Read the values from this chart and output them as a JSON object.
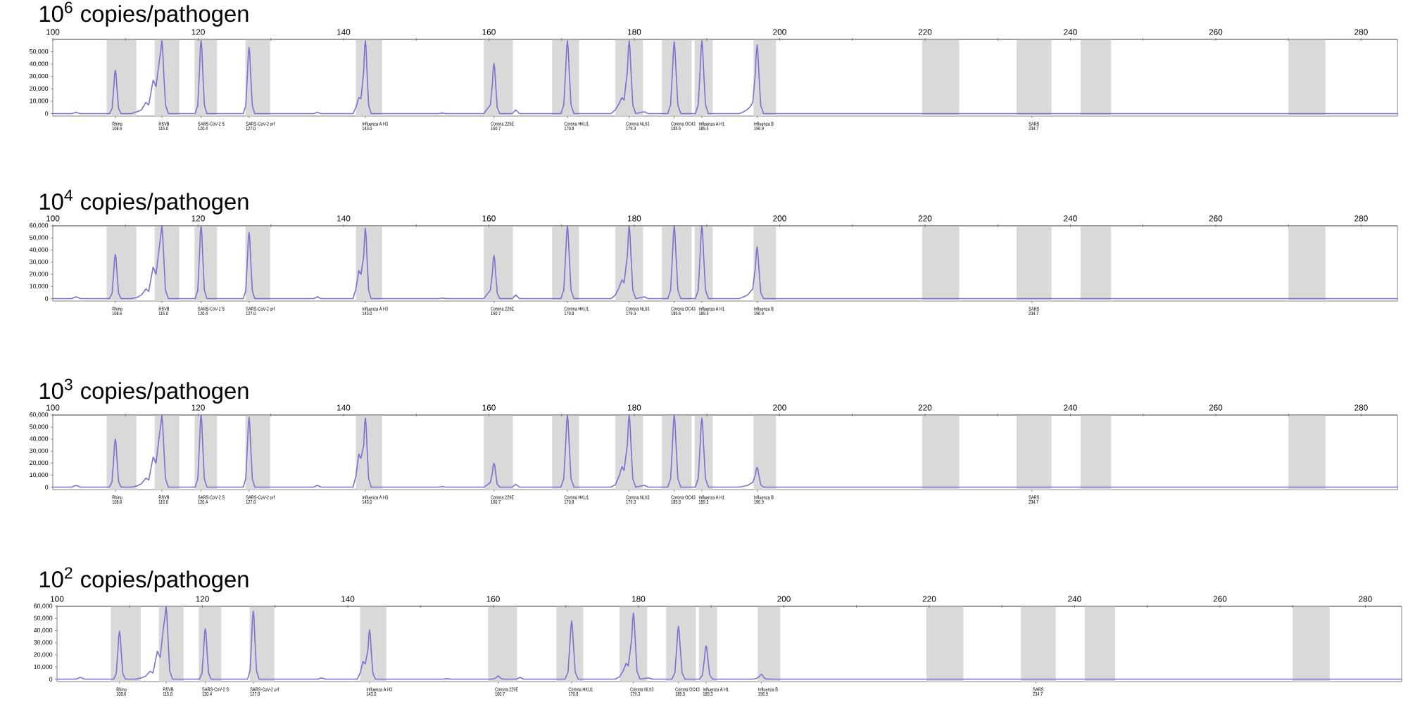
{
  "chart_data": [
    {
      "type": "line",
      "title": "10$^{6}$ copies/pathogen",
      "xlim": [
        100,
        285
      ],
      "x2lim": [
        100,
        285
      ],
      "ylim": [
        -2000,
        60000
      ],
      "xticks": [
        {
          "value": 108.6,
          "label": "108.6"
        },
        {
          "value": 115.0,
          "label": "115.0"
        },
        {
          "value": 120.4,
          "label": "120.4"
        },
        {
          "value": 127.0,
          "label": "127.0"
        },
        {
          "value": 143.0,
          "label": "143.0"
        },
        {
          "value": 160.7,
          "label": "160.7"
        },
        {
          "value": 170.8,
          "label": "170.8"
        },
        {
          "value": 179.3,
          "label": "179.3"
        },
        {
          "value": 185.5,
          "label": "185.5"
        },
        {
          "value": 189.3,
          "label": "189.3"
        },
        {
          "value": 196.9,
          "label": "196.9"
        },
        {
          "value": 234.7,
          "label": "234.7"
        }
      ],
      "x2ticks": [
        100,
        {
          "value": 110,
          "label": null
        },
        120,
        {
          "value": 130,
          "label": null
        },
        140,
        {
          "value": 150,
          "label": null
        },
        160,
        {
          "value": 170,
          "label": null
        },
        180,
        {
          "value": 190,
          "label": null
        },
        200,
        {
          "value": 210,
          "label": null
        },
        220,
        {
          "value": 230,
          "label": null
        },
        240,
        {
          "value": 250,
          "label": null
        },
        260,
        {
          "value": 270,
          "label": null
        },
        280
      ],
      "yticks": [
        0,
        {
          "value": 10000,
          "label": "10,000"
        },
        {
          "value": 20000,
          "label": "20,000"
        },
        {
          "value": 30000,
          "label": "30,000"
        },
        {
          "value": 40000,
          "label": "40,000"
        },
        {
          "value": 50000,
          "label": "50,000"
        }
      ],
      "bands": [
        {
          "axis": "x",
          "from": 107.4,
          "to": 111.5,
          "color": "#d9d9d9"
        },
        {
          "axis": "x",
          "from": 114.0,
          "to": 117.4,
          "color": "#d9d9d9"
        },
        {
          "axis": "x",
          "from": 119.5,
          "to": 122.6,
          "color": "#d9d9d9"
        },
        {
          "axis": "x",
          "from": 126.5,
          "to": 129.9,
          "color": "#d9d9d9"
        },
        {
          "axis": "x",
          "from": 141.7,
          "to": 145.3,
          "color": "#d9d9d9"
        },
        {
          "axis": "x",
          "from": 159.3,
          "to": 163.3,
          "color": "#d9d9d9"
        },
        {
          "axis": "x",
          "from": 168.7,
          "to": 172.4,
          "color": "#d9d9d9"
        },
        {
          "axis": "x",
          "from": 177.4,
          "to": 181.2,
          "color": "#d9d9d9"
        },
        {
          "axis": "x",
          "from": 183.8,
          "to": 187.9,
          "color": "#d9d9d9"
        },
        {
          "axis": "x",
          "from": 188.3,
          "to": 190.8,
          "color": "#d9d9d9"
        },
        {
          "axis": "x",
          "from": 196.4,
          "to": 199.5,
          "color": "#d9d9d9"
        },
        {
          "axis": "x",
          "from": 219.6,
          "to": 224.7,
          "color": "#d9d9d9"
        },
        {
          "axis": "x",
          "from": 232.6,
          "to": 237.4,
          "color": "#d9d9d9"
        },
        {
          "axis": "x",
          "from": 241.4,
          "to": 245.6,
          "color": "#d9d9d9"
        },
        {
          "axis": "x",
          "from": 270.0,
          "to": 275.1,
          "color": "#d9d9d9"
        }
      ],
      "annotations": [
        "Rhino",
        "RSVB",
        "SARS-CoV-2 S",
        "SARS-CoV-2 orf",
        "Influenza A H3",
        "Corona 229E",
        "Corona HKU1",
        "Corona NL63",
        "Corona OC43",
        "Influenza A H1",
        "Influenza B",
        "SARS"
      ],
      "x": [
        100,
        102.6,
        103.2,
        103.8,
        107.8,
        108.15,
        108.38,
        108.5,
        108.6,
        108.7,
        108.82,
        109.05,
        109.4,
        110.8,
        111.6,
        112.2,
        112.8,
        113.2,
        113.8,
        114.2,
        114.6,
        114.9,
        115.0,
        115.1,
        115.25,
        115.5,
        115.9,
        119.6,
        119.95,
        120.18,
        120.3,
        120.4,
        120.5,
        120.62,
        120.85,
        121.2,
        126.2,
        126.55,
        126.78,
        126.9,
        127.0,
        127.1,
        127.22,
        127.45,
        127.8,
        135.9,
        136.4,
        136.9,
        141.3,
        141.7,
        142.1,
        142.4,
        142.78,
        142.9,
        143.0,
        143.1,
        143.22,
        143.45,
        143.8,
        153.1,
        153.6,
        154.1,
        159.3,
        159.8,
        160.2,
        160.48,
        160.6,
        160.7,
        160.8,
        160.92,
        161.15,
        161.5,
        163.2,
        163.7,
        164.2,
        169.9,
        170.3,
        170.56,
        170.7,
        170.8,
        170.9,
        171.04,
        171.3,
        171.7,
        176.8,
        177.4,
        177.9,
        178.3,
        178.6,
        179.06,
        179.2,
        179.3,
        179.4,
        179.54,
        179.8,
        180.2,
        181.4,
        181.9,
        184.6,
        185.0,
        185.26,
        185.4,
        185.5,
        185.6,
        185.74,
        186.0,
        186.4,
        188.4,
        188.8,
        189.06,
        189.2,
        189.3,
        189.4,
        189.54,
        189.8,
        190.2,
        194.4,
        194.9,
        195.6,
        196.0,
        196.3,
        196.66,
        196.8,
        196.9,
        197.0,
        197.14,
        197.4,
        197.8,
        285
      ],
      "series": [
        {
          "color": "#7b70d0",
          "values": [
            0,
            0,
            1000,
            0,
            0,
            4200,
            21000,
            31500,
            35000,
            31500,
            21000,
            4200,
            0,
            0,
            1500,
            3000,
            9000,
            7000,
            27000,
            22000,
            40000,
            53000,
            59000,
            53000,
            35000,
            7000,
            0,
            0,
            7000,
            35000,
            53000,
            59000,
            53000,
            35000,
            7000,
            0,
            0,
            6400,
            32000,
            48000,
            53500,
            48000,
            32000,
            6400,
            0,
            0,
            1000,
            0,
            0,
            5000,
            13000,
            12000,
            35000,
            53000,
            59000,
            53000,
            35000,
            7000,
            0,
            0,
            500,
            0,
            0,
            4000,
            7000,
            24000,
            36500,
            40500,
            36500,
            24000,
            5000,
            0,
            0,
            3000,
            0,
            0,
            7000,
            35000,
            53000,
            59000,
            53000,
            35000,
            7000,
            0,
            0,
            3000,
            8000,
            13000,
            11000,
            35000,
            53000,
            59000,
            53000,
            35000,
            7000,
            0,
            1500,
            0,
            0,
            7000,
            35000,
            52000,
            58000,
            52000,
            35000,
            7000,
            0,
            0,
            7000,
            35000,
            53000,
            59000,
            53000,
            35000,
            7000,
            0,
            0,
            1000,
            3500,
            6000,
            9000,
            33000,
            50000,
            55500,
            50000,
            33000,
            6500,
            0,
            0
          ]
        }
      ]
    },
    {
      "type": "line",
      "title": "10$^{4}$ copies/pathogen",
      "xlim": [
        100,
        285
      ],
      "x2lim": [
        100,
        285
      ],
      "ylim": [
        -2000,
        60000
      ],
      "xticks": [
        {
          "value": 108.6,
          "label": "108.6"
        },
        {
          "value": 115.0,
          "label": "115.0"
        },
        {
          "value": 120.4,
          "label": "120.4"
        },
        {
          "value": 127.0,
          "label": "127.0"
        },
        {
          "value": 143.0,
          "label": "143.0"
        },
        {
          "value": 160.7,
          "label": "160.7"
        },
        {
          "value": 170.8,
          "label": "170.8"
        },
        {
          "value": 179.3,
          "label": "179.3"
        },
        {
          "value": 185.5,
          "label": "185.5"
        },
        {
          "value": 189.3,
          "label": "189.3"
        },
        {
          "value": 196.9,
          "label": "196.9"
        },
        {
          "value": 234.7,
          "label": "234.7"
        }
      ],
      "x2ticks": [
        100,
        {
          "value": 110,
          "label": null
        },
        120,
        {
          "value": 130,
          "label": null
        },
        140,
        {
          "value": 150,
          "label": null
        },
        160,
        {
          "value": 170,
          "label": null
        },
        180,
        {
          "value": 190,
          "label": null
        },
        200,
        {
          "value": 210,
          "label": null
        },
        220,
        {
          "value": 230,
          "label": null
        },
        240,
        {
          "value": 250,
          "label": null
        },
        260,
        {
          "value": 270,
          "label": null
        },
        280
      ],
      "yticks": [
        0,
        {
          "value": 10000,
          "label": "10,000"
        },
        {
          "value": 20000,
          "label": "20,000"
        },
        {
          "value": 30000,
          "label": "30,000"
        },
        {
          "value": 40000,
          "label": "40,000"
        },
        {
          "value": 50000,
          "label": "50,000"
        },
        {
          "value": 60000,
          "label": "60,000"
        }
      ],
      "bands": [
        {
          "axis": "x",
          "from": 107.4,
          "to": 111.5,
          "color": "#d9d9d9"
        },
        {
          "axis": "x",
          "from": 114.0,
          "to": 117.4,
          "color": "#d9d9d9"
        },
        {
          "axis": "x",
          "from": 119.5,
          "to": 122.6,
          "color": "#d9d9d9"
        },
        {
          "axis": "x",
          "from": 126.5,
          "to": 129.9,
          "color": "#d9d9d9"
        },
        {
          "axis": "x",
          "from": 141.7,
          "to": 145.3,
          "color": "#d9d9d9"
        },
        {
          "axis": "x",
          "from": 159.3,
          "to": 163.3,
          "color": "#d9d9d9"
        },
        {
          "axis": "x",
          "from": 168.7,
          "to": 172.4,
          "color": "#d9d9d9"
        },
        {
          "axis": "x",
          "from": 177.4,
          "to": 181.2,
          "color": "#d9d9d9"
        },
        {
          "axis": "x",
          "from": 183.8,
          "to": 187.9,
          "color": "#d9d9d9"
        },
        {
          "axis": "x",
          "from": 188.3,
          "to": 190.8,
          "color": "#d9d9d9"
        },
        {
          "axis": "x",
          "from": 196.4,
          "to": 199.5,
          "color": "#d9d9d9"
        },
        {
          "axis": "x",
          "from": 219.6,
          "to": 224.7,
          "color": "#d9d9d9"
        },
        {
          "axis": "x",
          "from": 232.6,
          "to": 237.4,
          "color": "#d9d9d9"
        },
        {
          "axis": "x",
          "from": 241.4,
          "to": 245.6,
          "color": "#d9d9d9"
        },
        {
          "axis": "x",
          "from": 270.0,
          "to": 275.1,
          "color": "#d9d9d9"
        }
      ],
      "annotations": [
        "Rhino",
        "RSVB",
        "SARS-CoV-2 S",
        "SARS-CoV-2 orf",
        "Influenza A H3",
        "Corona 229E",
        "Corona HKU1",
        "Corona NL63",
        "Corona OC43",
        "Influenza A H1",
        "Influenza B",
        "SARS"
      ],
      "x": [
        100,
        102.6,
        103.2,
        103.8,
        107.8,
        108.15,
        108.38,
        108.5,
        108.6,
        108.7,
        108.82,
        109.05,
        109.4,
        110.8,
        111.6,
        112.2,
        112.8,
        113.2,
        113.8,
        114.2,
        114.6,
        114.9,
        115.0,
        115.1,
        115.25,
        115.5,
        115.9,
        119.6,
        119.95,
        120.18,
        120.3,
        120.4,
        120.5,
        120.62,
        120.85,
        121.2,
        126.2,
        126.55,
        126.78,
        126.9,
        127.0,
        127.1,
        127.22,
        127.45,
        127.8,
        135.9,
        136.4,
        136.9,
        141.3,
        141.7,
        142.1,
        142.4,
        142.78,
        142.9,
        143.0,
        143.1,
        143.22,
        143.45,
        143.8,
        153.1,
        153.6,
        154.1,
        159.3,
        159.8,
        160.2,
        160.48,
        160.6,
        160.7,
        160.8,
        160.92,
        161.15,
        161.5,
        163.2,
        163.7,
        164.2,
        169.9,
        170.3,
        170.56,
        170.7,
        170.8,
        170.9,
        171.04,
        171.3,
        171.7,
        176.8,
        177.4,
        177.9,
        178.3,
        178.6,
        179.06,
        179.2,
        179.3,
        179.4,
        179.54,
        179.8,
        180.2,
        181.4,
        181.9,
        184.6,
        185.0,
        185.26,
        185.4,
        185.5,
        185.6,
        185.74,
        186.0,
        186.4,
        188.4,
        188.8,
        189.06,
        189.2,
        189.3,
        189.4,
        189.54,
        189.8,
        190.2,
        194.4,
        194.9,
        195.6,
        196.0,
        196.3,
        196.66,
        196.8,
        196.9,
        197.0,
        197.14,
        197.4,
        197.8,
        285
      ],
      "series": [
        {
          "color": "#7b70d0",
          "values": [
            0,
            0,
            1500,
            0,
            0,
            4400,
            22000,
            33000,
            36500,
            33000,
            22000,
            4400,
            0,
            0,
            1000,
            3000,
            8000,
            6000,
            26000,
            20000,
            40000,
            54000,
            60000,
            54000,
            36000,
            7000,
            0,
            0,
            7000,
            36000,
            54000,
            60000,
            54000,
            36000,
            7000,
            0,
            0,
            6500,
            33000,
            49000,
            54500,
            49000,
            33000,
            6500,
            0,
            0,
            1500,
            0,
            0,
            8000,
            23000,
            20000,
            35000,
            52000,
            58000,
            52000,
            35000,
            7000,
            0,
            0,
            500,
            0,
            0,
            4000,
            7000,
            21000,
            32000,
            35500,
            32000,
            21000,
            4500,
            0,
            0,
            3000,
            0,
            0,
            7000,
            36000,
            54000,
            60000,
            54000,
            36000,
            7000,
            0,
            0,
            3000,
            9000,
            15500,
            13000,
            36000,
            54000,
            60000,
            54000,
            36000,
            7000,
            0,
            1500,
            0,
            0,
            7000,
            36000,
            54000,
            60000,
            54000,
            36000,
            7000,
            0,
            0,
            7000,
            36000,
            54000,
            60000,
            54000,
            36000,
            7000,
            0,
            0,
            1000,
            3000,
            6000,
            8000,
            25500,
            38000,
            42500,
            38000,
            25500,
            5000,
            0,
            0
          ]
        }
      ]
    },
    {
      "type": "line",
      "title": "10$^{3}$ copies/pathogen",
      "xlim": [
        100,
        285
      ],
      "x2lim": [
        100,
        285
      ],
      "ylim": [
        -2000,
        60000
      ],
      "xticks": [
        {
          "value": 108.6,
          "label": "108.6"
        },
        {
          "value": 115.0,
          "label": "115.0"
        },
        {
          "value": 120.4,
          "label": "120.4"
        },
        {
          "value": 127.0,
          "label": "127.0"
        },
        {
          "value": 143.0,
          "label": "143.0"
        },
        {
          "value": 160.7,
          "label": "160.7"
        },
        {
          "value": 170.8,
          "label": "170.8"
        },
        {
          "value": 179.3,
          "label": "179.3"
        },
        {
          "value": 185.5,
          "label": "185.5"
        },
        {
          "value": 189.3,
          "label": "189.3"
        },
        {
          "value": 196.9,
          "label": "196.9"
        },
        {
          "value": 234.7,
          "label": "234.7"
        }
      ],
      "x2ticks": [
        100,
        {
          "value": 110,
          "label": null
        },
        120,
        {
          "value": 130,
          "label": null
        },
        140,
        {
          "value": 150,
          "label": null
        },
        160,
        {
          "value": 170,
          "label": null
        },
        180,
        {
          "value": 190,
          "label": null
        },
        200,
        {
          "value": 210,
          "label": null
        },
        220,
        {
          "value": 230,
          "label": null
        },
        240,
        {
          "value": 250,
          "label": null
        },
        260,
        {
          "value": 270,
          "label": null
        },
        280
      ],
      "yticks": [
        0,
        {
          "value": 10000,
          "label": "10,000"
        },
        {
          "value": 20000,
          "label": "20,000"
        },
        {
          "value": 30000,
          "label": "30,000"
        },
        {
          "value": 40000,
          "label": "40,000"
        },
        {
          "value": 50000,
          "label": "50,000"
        },
        {
          "value": 60000,
          "label": "60,000"
        }
      ],
      "bands": [
        {
          "axis": "x",
          "from": 107.4,
          "to": 111.5,
          "color": "#d9d9d9"
        },
        {
          "axis": "x",
          "from": 114.0,
          "to": 117.4,
          "color": "#d9d9d9"
        },
        {
          "axis": "x",
          "from": 119.5,
          "to": 122.6,
          "color": "#d9d9d9"
        },
        {
          "axis": "x",
          "from": 126.5,
          "to": 129.9,
          "color": "#d9d9d9"
        },
        {
          "axis": "x",
          "from": 141.7,
          "to": 145.3,
          "color": "#d9d9d9"
        },
        {
          "axis": "x",
          "from": 159.3,
          "to": 163.3,
          "color": "#d9d9d9"
        },
        {
          "axis": "x",
          "from": 168.7,
          "to": 172.4,
          "color": "#d9d9d9"
        },
        {
          "axis": "x",
          "from": 177.4,
          "to": 181.2,
          "color": "#d9d9d9"
        },
        {
          "axis": "x",
          "from": 183.8,
          "to": 187.9,
          "color": "#d9d9d9"
        },
        {
          "axis": "x",
          "from": 188.3,
          "to": 190.8,
          "color": "#d9d9d9"
        },
        {
          "axis": "x",
          "from": 196.4,
          "to": 199.5,
          "color": "#d9d9d9"
        },
        {
          "axis": "x",
          "from": 219.6,
          "to": 224.7,
          "color": "#d9d9d9"
        },
        {
          "axis": "x",
          "from": 232.6,
          "to": 237.4,
          "color": "#d9d9d9"
        },
        {
          "axis": "x",
          "from": 241.4,
          "to": 245.6,
          "color": "#d9d9d9"
        },
        {
          "axis": "x",
          "from": 270.0,
          "to": 275.1,
          "color": "#d9d9d9"
        }
      ],
      "annotations": [
        "Rhino",
        "RSVB",
        "SARS-CoV-2 S",
        "SARS-CoV-2 orf",
        "Influenza A H3",
        "Corona 229E",
        "Corona HKU1",
        "Corona NL63",
        "Corona OC43",
        "Influenza A H1",
        "Influenza B",
        "SARS"
      ],
      "x": [
        100,
        102.6,
        103.2,
        103.8,
        107.8,
        108.15,
        108.38,
        108.5,
        108.6,
        108.7,
        108.82,
        109.05,
        109.4,
        110.8,
        111.6,
        112.2,
        112.8,
        113.2,
        113.8,
        114.2,
        114.6,
        114.9,
        115.0,
        115.1,
        115.25,
        115.5,
        115.9,
        119.6,
        119.95,
        120.18,
        120.3,
        120.4,
        120.5,
        120.62,
        120.85,
        121.2,
        126.2,
        126.55,
        126.78,
        126.9,
        127.0,
        127.1,
        127.22,
        127.45,
        127.8,
        135.9,
        136.4,
        136.9,
        141.3,
        141.7,
        142.1,
        142.4,
        142.78,
        142.9,
        143.0,
        143.1,
        143.22,
        143.45,
        143.8,
        153.1,
        153.6,
        154.1,
        159.3,
        159.8,
        160.2,
        160.48,
        160.6,
        160.7,
        160.8,
        160.92,
        161.15,
        161.5,
        163.2,
        163.7,
        164.2,
        169.9,
        170.3,
        170.56,
        170.7,
        170.8,
        170.9,
        171.04,
        171.3,
        171.7,
        176.8,
        177.4,
        177.9,
        178.3,
        178.6,
        179.06,
        179.2,
        179.3,
        179.4,
        179.54,
        179.8,
        180.2,
        181.4,
        181.9,
        184.6,
        185.0,
        185.26,
        185.4,
        185.5,
        185.6,
        185.74,
        186.0,
        186.4,
        188.4,
        188.8,
        189.06,
        189.2,
        189.3,
        189.4,
        189.54,
        189.8,
        190.2,
        194.4,
        194.9,
        195.6,
        196.0,
        196.3,
        196.66,
        196.8,
        196.9,
        197.0,
        197.14,
        197.4,
        197.8,
        285
      ],
      "series": [
        {
          "color": "#7b70d0",
          "values": [
            0,
            0,
            1500,
            0,
            0,
            4800,
            24000,
            36000,
            40000,
            36000,
            24000,
            4800,
            0,
            0,
            1000,
            3000,
            7500,
            6000,
            25000,
            20000,
            40000,
            54000,
            60000,
            54000,
            36000,
            7000,
            0,
            0,
            7000,
            36000,
            54000,
            60000,
            54000,
            36000,
            7000,
            0,
            0,
            7000,
            35000,
            52000,
            58000,
            52000,
            35000,
            7000,
            0,
            0,
            1500,
            0,
            0,
            9000,
            27500,
            24000,
            35000,
            52000,
            57500,
            52000,
            34500,
            7000,
            0,
            0,
            500,
            0,
            0,
            2000,
            4000,
            12000,
            18000,
            20000,
            18000,
            12000,
            2400,
            0,
            0,
            2500,
            0,
            0,
            7000,
            36000,
            54000,
            60000,
            54000,
            36000,
            7000,
            0,
            0,
            2000,
            9000,
            17000,
            14000,
            36000,
            54000,
            60000,
            54000,
            36000,
            7000,
            0,
            1500,
            0,
            0,
            7000,
            36000,
            54000,
            60000,
            54000,
            36000,
            7000,
            0,
            0,
            7000,
            34500,
            52000,
            57500,
            52000,
            34500,
            7000,
            0,
            0,
            500,
            1500,
            3000,
            4000,
            10000,
            15000,
            16500,
            15000,
            10000,
            2000,
            0,
            0
          ]
        }
      ]
    },
    {
      "type": "line",
      "title": "10$^{2}$ copies/pathogen",
      "xlim": [
        100,
        285
      ],
      "x2lim": [
        100,
        285
      ],
      "ylim": [
        -2000,
        60000
      ],
      "xticks": [
        {
          "value": 108.6,
          "label": "108.6"
        },
        {
          "value": 115.0,
          "label": "115.0"
        },
        {
          "value": 120.4,
          "label": "120.4"
        },
        {
          "value": 127.0,
          "label": "127.0"
        },
        {
          "value": 143.0,
          "label": "143.0"
        },
        {
          "value": 160.7,
          "label": "160.7"
        },
        {
          "value": 170.8,
          "label": "170.8"
        },
        {
          "value": 179.3,
          "label": "179.3"
        },
        {
          "value": 185.5,
          "label": "185.5"
        },
        {
          "value": 189.3,
          "label": "189.3"
        },
        {
          "value": 196.9,
          "label": "196.9"
        },
        {
          "value": 234.7,
          "label": "234.7"
        }
      ],
      "x2ticks": [
        100,
        {
          "value": 110,
          "label": null
        },
        120,
        {
          "value": 130,
          "label": null
        },
        140,
        {
          "value": 150,
          "label": null
        },
        160,
        {
          "value": 170,
          "label": null
        },
        180,
        {
          "value": 190,
          "label": null
        },
        200,
        {
          "value": 210,
          "label": null
        },
        220,
        {
          "value": 230,
          "label": null
        },
        240,
        {
          "value": 250,
          "label": null
        },
        260,
        {
          "value": 270,
          "label": null
        },
        280
      ],
      "yticks": [
        0,
        {
          "value": 10000,
          "label": "10,000"
        },
        {
          "value": 20000,
          "label": "20,000"
        },
        {
          "value": 30000,
          "label": "30,000"
        },
        {
          "value": 40000,
          "label": "40,000"
        },
        {
          "value": 50000,
          "label": "50,000"
        },
        {
          "value": 60000,
          "label": "60,000"
        }
      ],
      "bands": [
        {
          "axis": "x",
          "from": 107.4,
          "to": 111.5,
          "color": "#d9d9d9"
        },
        {
          "axis": "x",
          "from": 114.0,
          "to": 117.4,
          "color": "#d9d9d9"
        },
        {
          "axis": "x",
          "from": 119.5,
          "to": 122.6,
          "color": "#d9d9d9"
        },
        {
          "axis": "x",
          "from": 126.5,
          "to": 129.9,
          "color": "#d9d9d9"
        },
        {
          "axis": "x",
          "from": 141.7,
          "to": 145.3,
          "color": "#d9d9d9"
        },
        {
          "axis": "x",
          "from": 159.3,
          "to": 163.3,
          "color": "#d9d9d9"
        },
        {
          "axis": "x",
          "from": 168.7,
          "to": 172.4,
          "color": "#d9d9d9"
        },
        {
          "axis": "x",
          "from": 177.4,
          "to": 181.2,
          "color": "#d9d9d9"
        },
        {
          "axis": "x",
          "from": 183.8,
          "to": 187.9,
          "color": "#d9d9d9"
        },
        {
          "axis": "x",
          "from": 188.3,
          "to": 190.8,
          "color": "#d9d9d9"
        },
        {
          "axis": "x",
          "from": 196.4,
          "to": 199.5,
          "color": "#d9d9d9"
        },
        {
          "axis": "x",
          "from": 219.6,
          "to": 224.7,
          "color": "#d9d9d9"
        },
        {
          "axis": "x",
          "from": 232.6,
          "to": 237.4,
          "color": "#d9d9d9"
        },
        {
          "axis": "x",
          "from": 241.4,
          "to": 245.6,
          "color": "#d9d9d9"
        },
        {
          "axis": "x",
          "from": 270.0,
          "to": 275.1,
          "color": "#d9d9d9"
        }
      ],
      "annotations": [
        "Rhino",
        "RSVB",
        "SARS-CoV-2 S",
        "SARS-CoV-2 orf",
        "Influenza A H3",
        "Corona 229E",
        "Corona HKU1",
        "Corona NL63",
        "Corona OC43",
        "Influenza A H1",
        "Influenza B",
        "SARS"
      ],
      "x": [
        100,
        102.6,
        103.2,
        103.8,
        107.8,
        108.15,
        108.38,
        108.5,
        108.6,
        108.7,
        108.82,
        109.05,
        109.4,
        110.8,
        111.6,
        112.2,
        112.8,
        113.2,
        113.8,
        114.2,
        114.6,
        114.9,
        115.0,
        115.1,
        115.25,
        115.5,
        115.9,
        119.6,
        119.95,
        120.18,
        120.3,
        120.4,
        120.5,
        120.62,
        120.85,
        121.2,
        126.2,
        126.55,
        126.78,
        126.9,
        127.0,
        127.1,
        127.22,
        127.45,
        127.8,
        135.9,
        136.4,
        136.9,
        141.3,
        141.7,
        142.1,
        142.4,
        142.78,
        142.9,
        143.0,
        143.1,
        143.22,
        143.45,
        143.8,
        153.1,
        153.6,
        154.1,
        159.3,
        159.8,
        160.2,
        160.48,
        160.6,
        160.7,
        160.8,
        160.92,
        161.15,
        161.5,
        163.2,
        163.7,
        164.2,
        169.9,
        170.3,
        170.56,
        170.7,
        170.8,
        170.9,
        171.04,
        171.3,
        171.7,
        176.8,
        177.4,
        177.9,
        178.3,
        178.6,
        179.06,
        179.2,
        179.3,
        179.4,
        179.54,
        179.8,
        180.2,
        181.4,
        181.9,
        184.6,
        185.0,
        185.26,
        185.4,
        185.5,
        185.6,
        185.74,
        186.0,
        186.4,
        188.4,
        188.8,
        189.06,
        189.2,
        189.3,
        189.4,
        189.54,
        189.8,
        190.2,
        194.4,
        194.9,
        195.6,
        196.0,
        196.3,
        196.66,
        196.8,
        196.9,
        197.0,
        197.14,
        197.4,
        197.8,
        285
      ],
      "series": [
        {
          "color": "#7b70d0",
          "values": [
            0,
            0,
            1500,
            0,
            0,
            4700,
            23700,
            35500,
            39500,
            35500,
            23700,
            4700,
            0,
            0,
            1000,
            2500,
            6500,
            5000,
            23000,
            18000,
            40000,
            54000,
            60000,
            54000,
            36000,
            7000,
            0,
            0,
            5000,
            25000,
            37500,
            41500,
            37500,
            25000,
            5000,
            0,
            0,
            6700,
            33500,
            50500,
            56000,
            50500,
            33500,
            6700,
            0,
            0,
            1000,
            0,
            0,
            5000,
            14500,
            12500,
            24000,
            36500,
            40500,
            36500,
            24000,
            5000,
            0,
            0,
            500,
            0,
            0,
            0,
            500,
            1500,
            2300,
            2600,
            2300,
            1500,
            300,
            0,
            0,
            1500,
            0,
            0,
            5800,
            29000,
            43000,
            48000,
            43000,
            29000,
            5800,
            0,
            0,
            2000,
            7000,
            13000,
            11000,
            33000,
            49000,
            54500,
            49000,
            33000,
            6500,
            0,
            1000,
            0,
            0,
            5200,
            26000,
            39000,
            43500,
            39000,
            26000,
            5200,
            0,
            0,
            3300,
            16500,
            25000,
            27500,
            25000,
            16500,
            3300,
            0,
            0,
            0,
            0,
            300,
            800,
            2400,
            3600,
            4000,
            3600,
            2400,
            500,
            0,
            0
          ]
        }
      ]
    }
  ]
}
